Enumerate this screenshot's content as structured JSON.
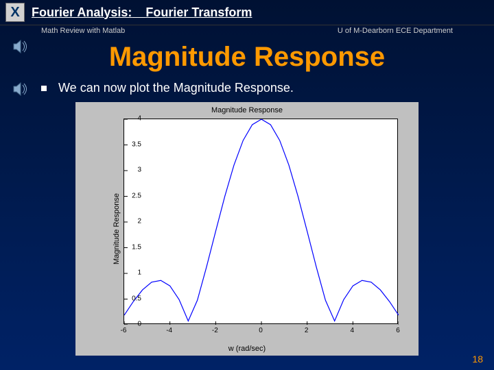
{
  "header": {
    "close_label": "X",
    "breadcrumb1": "Fourier Analysis:",
    "breadcrumb2": "Fourier Transform",
    "sub_left": "Math Review with Matlab",
    "sub_right": "U of M-Dearborn ECE Department"
  },
  "title": "Magnitude Response",
  "body": "We can now plot the Magnitude Response.",
  "page_number": "18",
  "chart": {
    "type": "line",
    "title": "Magnitude Response",
    "xlabel": "w (rad/sec)",
    "ylabel": "Magnitude Response",
    "xlim": [
      -6,
      6
    ],
    "ylim": [
      0,
      4
    ],
    "xticks": [
      -6,
      -4,
      -2,
      0,
      2,
      4,
      6
    ],
    "yticks": [
      0,
      0.5,
      1,
      1.5,
      2,
      2.5,
      3,
      3.5,
      4
    ],
    "line_color": "#0000ff",
    "line_width": 1.2,
    "background_color": "#ffffff",
    "panel_color": "#c0c0c0",
    "tick_fontsize": 10,
    "label_fontsize": 11,
    "title_fontsize": 11,
    "data_note": "y = 4*|sin(x)/x| approx; sampled from x=-6 to 6",
    "x": [
      -6,
      -5.6,
      -5.2,
      -4.8,
      -4.4,
      -4,
      -3.6,
      -3.2,
      -2.8,
      -2.4,
      -2,
      -1.6,
      -1.2,
      -0.8,
      -0.4,
      0,
      0.4,
      0.8,
      1.2,
      1.6,
      2,
      2.4,
      2.8,
      3.2,
      3.6,
      4,
      4.4,
      4.8,
      5.2,
      5.6,
      6
    ],
    "y": [
      0.186,
      0.452,
      0.679,
      0.83,
      0.863,
      0.757,
      0.491,
      0.073,
      0.478,
      1.126,
      1.819,
      2.499,
      3.108,
      3.587,
      3.894,
      4.0,
      3.894,
      3.587,
      3.108,
      2.499,
      1.819,
      1.126,
      0.478,
      0.073,
      0.491,
      0.757,
      0.863,
      0.83,
      0.679,
      0.452,
      0.186
    ]
  }
}
